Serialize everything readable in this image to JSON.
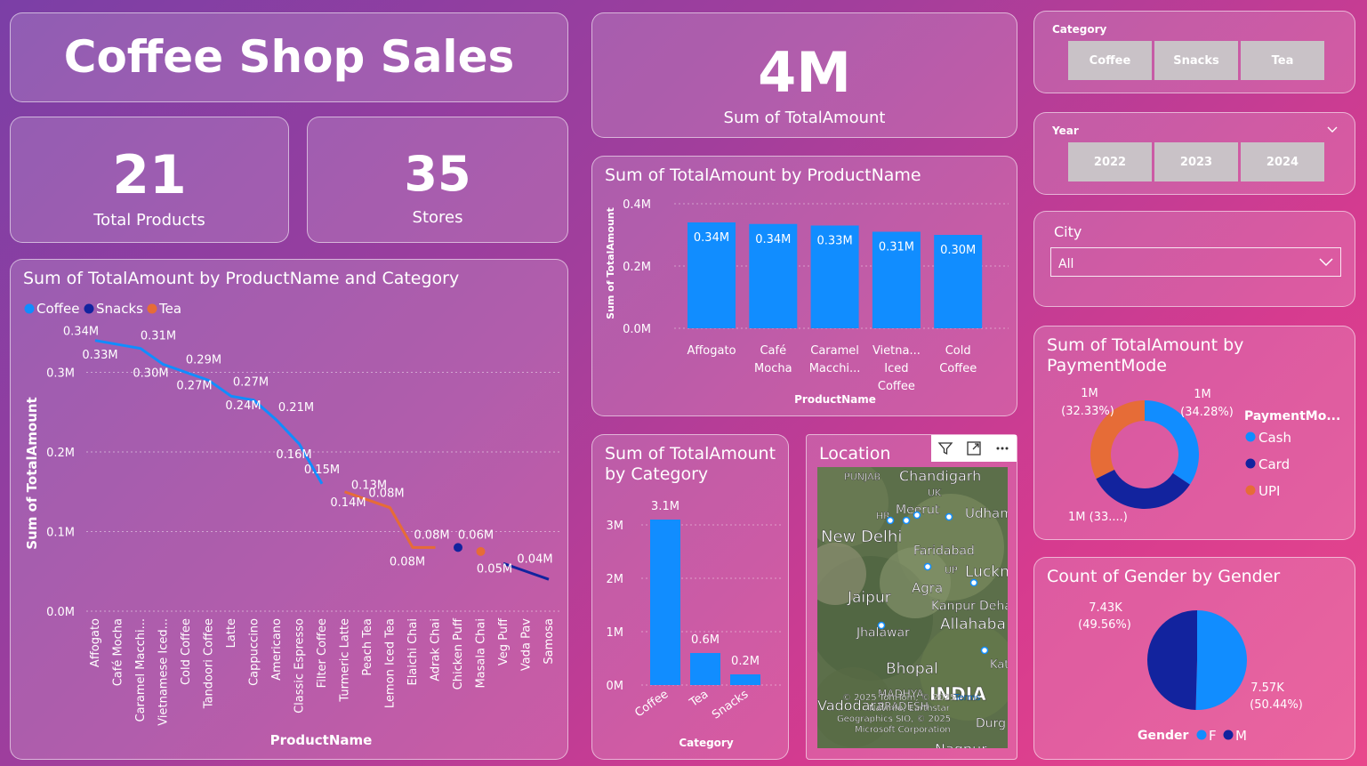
{
  "title": "Coffee Shop Sales",
  "kpis": {
    "products": {
      "value": "21",
      "label": "Total Products"
    },
    "stores": {
      "value": "35",
      "label": "Stores"
    },
    "total": {
      "value": "4M",
      "label": "Sum of TotalAmount"
    }
  },
  "slicers": {
    "category": {
      "label": "Category",
      "options": [
        "Coffee",
        "Snacks",
        "Tea"
      ]
    },
    "year": {
      "label": "Year",
      "options": [
        "2022",
        "2023",
        "2024"
      ]
    },
    "city": {
      "label": "City",
      "value": "All"
    }
  },
  "map": {
    "title": "Location",
    "places": [
      "PUNJAB",
      "Chandigarh",
      "UK",
      "Meerut",
      "Udham",
      "HR",
      "New Delhi",
      "Faridabad",
      "UP",
      "Luckn",
      "Agra",
      "Jaipur",
      "Kanpur",
      "Deha",
      "Allahaba",
      "Jhalawar",
      "Bhopal",
      "Kat",
      "MADHYA",
      "PRADESH",
      "INDIA",
      "Vadodara",
      "Nagpur",
      "Durg"
    ],
    "attribution": [
      "© 2025 TomTom, © 2025",
      "Terms",
      "Navinfo, Earthstar",
      "Geographics SIO, © 2025",
      "Microsoft Corporation"
    ],
    "icons": [
      "filter-icon",
      "focus-mode-icon",
      "more-options-icon"
    ]
  },
  "colors": {
    "coffee": "#118dff",
    "snacks": "#12239e",
    "tea": "#e66c37"
  },
  "chart_data": [
    {
      "type": "line",
      "title": "Sum of TotalAmount by ProductName and Category",
      "xlabel": "ProductName",
      "ylabel": "Sum of TotalAmount",
      "ylim": [
        0,
        0.37
      ],
      "yticks": [
        "0.0M",
        "0.1M",
        "0.2M",
        "0.3M"
      ],
      "legend": {
        "position": "top-left",
        "items": [
          "Coffee",
          "Snacks",
          "Tea"
        ]
      },
      "categories": [
        "Affogato",
        "Café Mocha",
        "Caramel Macchi...",
        "Vietnamese Iced...",
        "Cold Coffee",
        "Tandoori Coffee",
        "Latte",
        "Cappuccino",
        "Americano",
        "Classic Espresso",
        "Filter Coffee",
        "Turmeric Latte",
        "Peach Tea",
        "Lemon Iced Tea",
        "Elaichi Chai",
        "Adrak Chai",
        "Chicken Puff",
        "Masala Chai",
        "Veg Puff",
        "Vada Pav",
        "Samosa"
      ],
      "series": [
        {
          "name": "Coffee",
          "values": [
            0.34,
            0.335,
            0.33,
            0.31,
            0.3,
            0.29,
            0.27,
            0.265,
            0.24,
            0.21,
            0.16,
            null,
            null,
            null,
            null,
            null,
            null,
            null,
            null,
            null,
            null
          ]
        },
        {
          "name": "Tea",
          "values": [
            null,
            null,
            null,
            null,
            null,
            null,
            null,
            null,
            null,
            null,
            null,
            0.15,
            0.14,
            0.13,
            0.08,
            0.08,
            null,
            0.075,
            null,
            null,
            null
          ]
        },
        {
          "name": "Snacks",
          "values": [
            null,
            null,
            null,
            null,
            null,
            null,
            null,
            null,
            null,
            null,
            null,
            null,
            null,
            null,
            null,
            null,
            0.08,
            null,
            0.06,
            0.05,
            0.04
          ]
        }
      ],
      "data_labels": [
        "0.34M",
        "0.33M",
        "0.31M",
        "0.30M",
        "0.29M",
        "0.27M",
        "0.27M",
        "0.24M",
        "0.21M",
        "0.16M",
        "0.15M",
        "0.14M",
        "0.13M",
        "0.08M",
        "0.08M",
        "0.08M",
        "0.06M",
        "0.05M",
        "0.04M"
      ]
    },
    {
      "type": "bar",
      "title": "Sum of TotalAmount by ProductName",
      "xlabel": "ProductName",
      "ylabel": "Sum of TotalAmount",
      "ylim": [
        0,
        0.4
      ],
      "yticks": [
        "0.0M",
        "0.2M",
        "0.4M"
      ],
      "categories": [
        [
          "Affogato"
        ],
        [
          "Café",
          "Mocha"
        ],
        [
          "Caramel",
          "Macchi..."
        ],
        [
          "Vietna...",
          "Iced",
          "Coffee"
        ],
        [
          "Cold",
          "Coffee"
        ]
      ],
      "values": [
        0.34,
        0.335,
        0.33,
        0.31,
        0.3
      ],
      "labels": [
        "0.34M",
        "0.34M",
        "0.33M",
        "0.31M",
        "0.30M"
      ]
    },
    {
      "type": "bar",
      "title": "Sum of TotalAmount by Category",
      "xlabel": "Category",
      "ylim": [
        0,
        3.3
      ],
      "yticks": [
        "0M",
        "1M",
        "2M",
        "3M"
      ],
      "categories": [
        "Coffee",
        "Tea",
        "Snacks"
      ],
      "values": [
        3.1,
        0.6,
        0.2
      ],
      "labels": [
        "3.1M",
        "0.6M",
        "0.2M"
      ]
    },
    {
      "type": "pie",
      "title": "Sum of TotalAmount by PaymentMode",
      "legend": {
        "title": "PaymentMo...",
        "position": "right",
        "items": [
          "Cash",
          "Card",
          "UPI"
        ]
      },
      "slices": [
        {
          "name": "Cash",
          "value": 34.28,
          "label": "1M",
          "pct": "(34.28%)"
        },
        {
          "name": "Card",
          "value": 33.39,
          "label": "1M (33....)",
          "pct": ""
        },
        {
          "name": "UPI",
          "value": 32.33,
          "label": "1M",
          "pct": "(32.33%)"
        }
      ]
    },
    {
      "type": "pie",
      "title": "Count of Gender by Gender",
      "legend": {
        "title": "Gender",
        "position": "bottom",
        "items": [
          "F",
          "M"
        ]
      },
      "slices": [
        {
          "name": "F",
          "value": 50.44,
          "label": "7.57K",
          "pct": "(50.44%)"
        },
        {
          "name": "M",
          "value": 49.56,
          "label": "7.43K",
          "pct": "(49.56%)"
        }
      ]
    }
  ]
}
